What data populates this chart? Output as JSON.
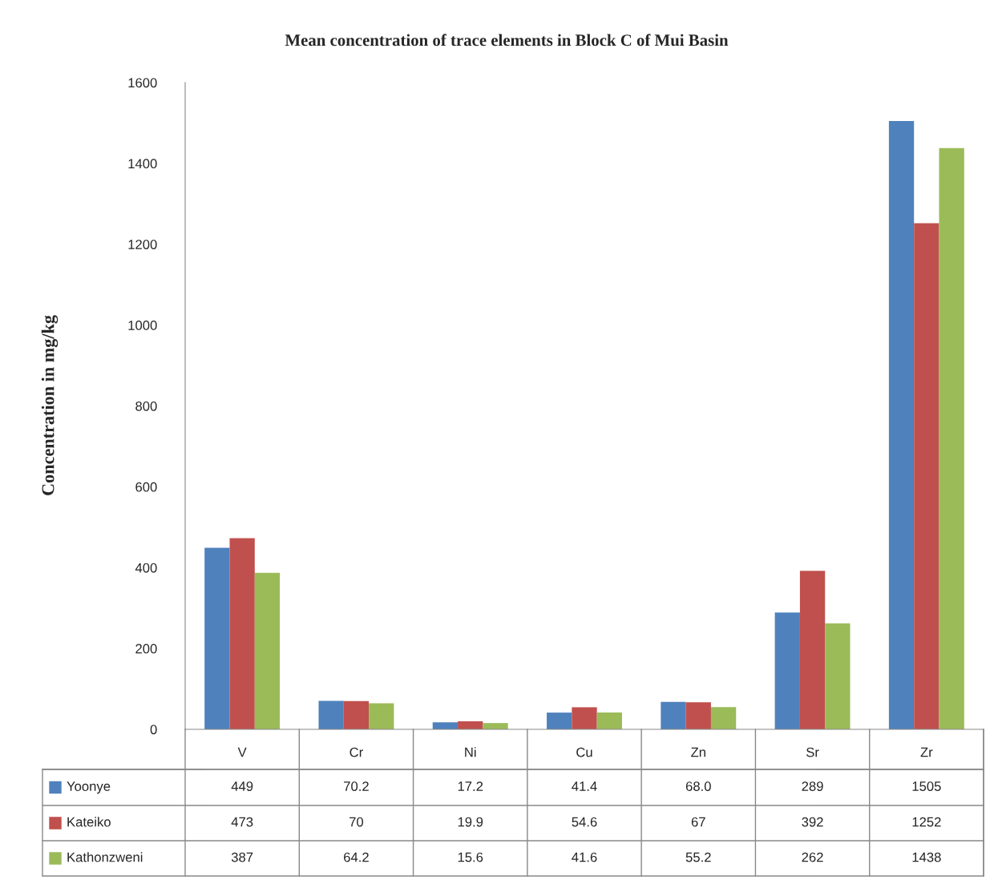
{
  "chart_data": {
    "type": "bar",
    "title": "Mean concentration of trace elements in Block C of Mui Basin",
    "ylabel": "Concentration in mg/kg",
    "categories": [
      "V",
      "Cr",
      "Ni",
      "Cu",
      "Zn",
      "Sr",
      "Zr"
    ],
    "series": [
      {
        "name": "Yoonye",
        "color": "#4f81bd",
        "values": [
          449,
          70.2,
          17.2,
          41.4,
          68.0,
          289,
          1505
        ],
        "value_labels": [
          "449",
          "70.2",
          "17.2",
          "41.4",
          "68.0",
          "289",
          "1505"
        ]
      },
      {
        "name": "Kateiko",
        "color": "#c0504d",
        "values": [
          473,
          70,
          19.9,
          54.6,
          67,
          392,
          1252
        ],
        "value_labels": [
          "473",
          "70",
          "19.9",
          "54.6",
          "67",
          "392",
          "1252"
        ]
      },
      {
        "name": "Kathonzweni",
        "color": "#9bbb59",
        "values": [
          387,
          64.2,
          15.6,
          41.6,
          55.2,
          262,
          1438
        ],
        "value_labels": [
          "387",
          "64.2",
          "15.6",
          "41.6",
          "55.2",
          "262",
          "1438"
        ]
      }
    ],
    "legend": "bottom left",
    "ylim": [
      0,
      1600
    ],
    "yticks": [
      0,
      200,
      400,
      600,
      800,
      1000,
      1200,
      1400,
      1600
    ],
    "grid": false
  }
}
